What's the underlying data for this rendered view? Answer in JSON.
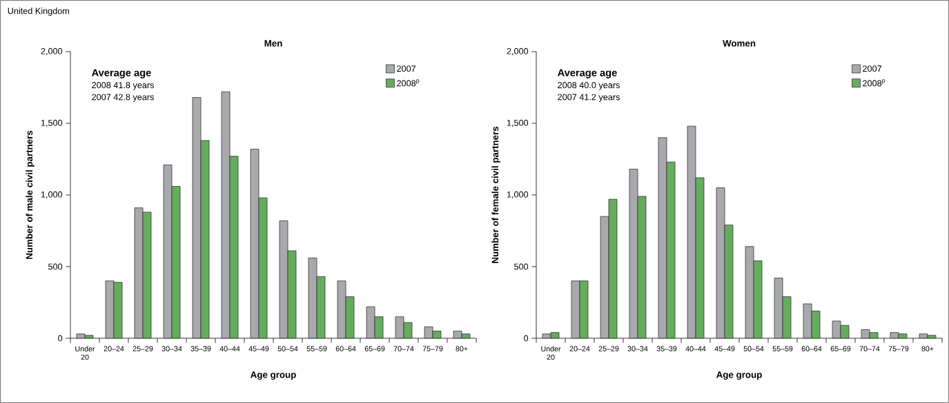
{
  "chart_data": [
    {
      "type": "bar",
      "title": "Men",
      "subtitle": "United Kingdom",
      "xlabel": "Age group",
      "ylabel": "Number of male civil partners",
      "categories": [
        "Under 20",
        "20–24",
        "25–29",
        "30–34",
        "35–39",
        "40–44",
        "45–49",
        "50–54",
        "55–59",
        "60–64",
        "65–69",
        "70–74",
        "75–79",
        "80+"
      ],
      "series": [
        {
          "name": "2007",
          "color": "#a7a9ac",
          "values": [
            30,
            400,
            910,
            1210,
            1680,
            1720,
            1320,
            820,
            560,
            400,
            220,
            150,
            80,
            50
          ]
        },
        {
          "name": "2008$^{p}$",
          "color": "#66ac5f",
          "values": [
            20,
            390,
            880,
            1060,
            1380,
            1270,
            980,
            610,
            430,
            290,
            150,
            110,
            50,
            30
          ]
        }
      ],
      "ylim": [
        0,
        2000
      ],
      "yticks": [
        0,
        500,
        {
          "value": 1000,
          "label": "1,000"
        },
        {
          "value": 1500,
          "label": "1,500"
        },
        {
          "value": 2000,
          "label": "2,000"
        }
      ],
      "legend": "top right",
      "annotations": [
        "Average age",
        "2008 41.8 years",
        "2007 42.8 years"
      ]
    },
    {
      "type": "bar",
      "title": "Women",
      "xlabel": "Age group",
      "ylabel": "Number of female civil partners",
      "categories": [
        "Under 20",
        "20–24",
        "25–29",
        "30–34",
        "35–39",
        "40–44",
        "45–49",
        "50–54",
        "55–59",
        "60–64",
        "65–69",
        "70–74",
        "75–79",
        "80+"
      ],
      "series": [
        {
          "name": "2007",
          "color": "#a7a9ac",
          "values": [
            30,
            400,
            850,
            1180,
            1400,
            1480,
            1050,
            640,
            420,
            240,
            120,
            60,
            40,
            30
          ]
        },
        {
          "name": "2008$^{p}$",
          "color": "#66ac5f",
          "values": [
            40,
            400,
            970,
            990,
            1230,
            1120,
            790,
            540,
            290,
            190,
            90,
            40,
            30,
            20
          ]
        }
      ],
      "ylim": [
        0,
        2000
      ],
      "yticks": [
        0,
        500,
        {
          "value": 1000,
          "label": "1,000"
        },
        {
          "value": 1500,
          "label": "1,500"
        },
        {
          "value": 2000,
          "label": "2,000"
        }
      ],
      "legend": "top right",
      "annotations": [
        "Average age",
        "2008 40.0 years",
        "2007 41.2 years"
      ]
    }
  ]
}
